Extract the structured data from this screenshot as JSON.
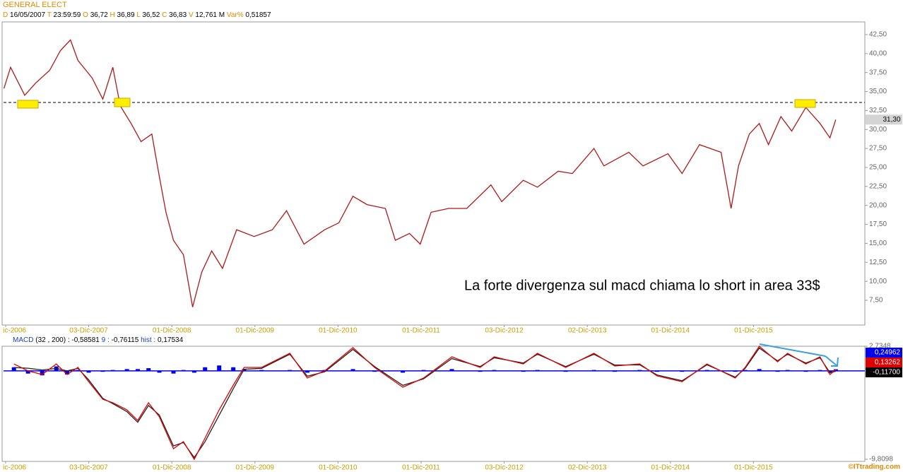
{
  "header": {
    "symbol": "GENERAL ELECT",
    "fields": [
      {
        "key": "D",
        "value": "16/05/2007"
      },
      {
        "key": "T",
        "value": "23:59:59"
      },
      {
        "key": "O",
        "value": "36,72"
      },
      {
        "key": "H",
        "value": "36,89"
      },
      {
        "key": "L",
        "value": "36,52"
      },
      {
        "key": "C",
        "value": "36,83"
      },
      {
        "key": "V",
        "value": "12,761 M"
      },
      {
        "key": "Var%",
        "value": "0,51857"
      }
    ]
  },
  "watermark": "©ITtrading.com",
  "chart_data": [
    {
      "type": "line",
      "annotation": "La forte divergenza sul macd chiama lo short in area 33$",
      "xlim": [
        2006.895,
        2017.26
      ],
      "ylim": [
        4.24,
        43.52
      ],
      "xticks": [
        {
          "value": 2006.92,
          "label": "ic-2006"
        },
        {
          "value": 2007.92,
          "label": "03-Dic-2007"
        },
        {
          "value": 2008.92,
          "label": "01-Dic-2008"
        },
        {
          "value": 2009.92,
          "label": "01-Dic-2009"
        },
        {
          "value": 2010.92,
          "label": "01-Dic-2010"
        },
        {
          "value": 2011.92,
          "label": "01-Dic-2011"
        },
        {
          "value": 2012.92,
          "label": "03-Dic-2012"
        },
        {
          "value": 2013.92,
          "label": "02-Dic-2013"
        },
        {
          "value": 2014.92,
          "label": "01-Dic-2014"
        },
        {
          "value": 2015.92,
          "label": "01-Dic-2015"
        }
      ],
      "yticks": [
        {
          "value": 7.5,
          "label": "7,50"
        },
        {
          "value": 10,
          "label": "10,00"
        },
        {
          "value": 12.5,
          "label": "12,50"
        },
        {
          "value": 15,
          "label": "15,00"
        },
        {
          "value": 17.5,
          "label": "17,50"
        },
        {
          "value": 20,
          "label": "20,00"
        },
        {
          "value": 22.5,
          "label": "22,50"
        },
        {
          "value": 25,
          "label": "25,00"
        },
        {
          "value": 27.5,
          "label": "27,50"
        },
        {
          "value": 30,
          "label": "30,00"
        },
        {
          "value": 32.5,
          "label": "32,50"
        },
        {
          "value": 35,
          "label": "35,00"
        },
        {
          "value": 37.5,
          "label": "37,50"
        },
        {
          "value": 40,
          "label": "40,00"
        },
        {
          "value": 42.5,
          "label": "42,50"
        }
      ],
      "hline": 33.56,
      "last_price": {
        "value": 31.3,
        "label": "31,30"
      },
      "series": [
        {
          "color": "#b01818",
          "x": [
            2006.9,
            2006.98,
            2007.15,
            2007.28,
            2007.45,
            2007.58,
            2007.7,
            2007.79,
            2007.96,
            2008.09,
            2008.21,
            2008.3,
            2008.43,
            2008.55,
            2008.68,
            2008.77,
            2008.85,
            2008.94,
            2009.06,
            2009.17,
            2009.28,
            2009.4,
            2009.53,
            2009.7,
            2009.91,
            2010.13,
            2010.3,
            2010.51,
            2010.76,
            2010.93,
            2011.1,
            2011.27,
            2011.49,
            2011.61,
            2011.78,
            2011.91,
            2012.04,
            2012.25,
            2012.47,
            2012.76,
            2012.89,
            2013.15,
            2013.32,
            2013.57,
            2013.74,
            2014.0,
            2014.12,
            2014.42,
            2014.59,
            2014.89,
            2015.06,
            2015.27,
            2015.53,
            2015.65,
            2015.74,
            2015.87,
            2015.99,
            2016.1,
            2016.25,
            2016.38,
            2016.55,
            2016.72,
            2016.84,
            2016.91
          ],
          "values": [
            35.4,
            38.2,
            34.5,
            36.1,
            37.8,
            40.4,
            41.8,
            39.1,
            36.8,
            34.0,
            38.2,
            33.1,
            30.8,
            28.4,
            29.4,
            23.8,
            19.1,
            15.4,
            13.5,
            6.6,
            11.2,
            14.0,
            11.7,
            16.8,
            15.9,
            16.8,
            19.3,
            14.9,
            16.8,
            17.7,
            21.2,
            20.1,
            19.6,
            15.4,
            16.3,
            14.9,
            19.1,
            19.6,
            19.6,
            22.7,
            20.5,
            23.3,
            22.4,
            24.5,
            24.2,
            27.5,
            25.2,
            27.0,
            25.2,
            26.8,
            24.2,
            28.0,
            27.0,
            19.6,
            25.2,
            29.4,
            30.8,
            28.0,
            31.7,
            29.8,
            32.9,
            30.8,
            28.9,
            31.3
          ]
        }
      ]
    },
    {
      "type": "line",
      "fields": [
        {
          "label": "MACD",
          "value": "(32 , 200) : -0,58581"
        },
        {
          "label": "9 :",
          "value": "-0,76115"
        },
        {
          "label": "hist :",
          "value": "0,17534"
        }
      ],
      "xlim": [
        2006.895,
        2017.26
      ],
      "ylim": [
        -9.8098,
        2.7348
      ],
      "xticks": [
        {
          "value": 2006.92,
          "label": "ic-2006"
        },
        {
          "value": 2007.92,
          "label": "03-Dic-2007"
        },
        {
          "value": 2008.92,
          "label": "01-Dic-2008"
        },
        {
          "value": 2009.92,
          "label": "01-Dic-2009"
        },
        {
          "value": 2010.92,
          "label": "01-Dic-2010"
        },
        {
          "value": 2011.92,
          "label": "01-Dic-2011"
        },
        {
          "value": 2012.92,
          "label": "03-Dic-2012"
        },
        {
          "value": 2013.92,
          "label": "02-Dic-2013"
        },
        {
          "value": 2014.92,
          "label": "01-Dic-2014"
        },
        {
          "value": 2015.92,
          "label": "01-Dic-2015"
        }
      ],
      "yticks": [
        {
          "value": -9.8098,
          "label": "-9,8098"
        },
        {
          "value": 2.7348,
          "label": "2,7348"
        }
      ],
      "last_values": [
        {
          "label": "0,24962",
          "color": "#0000ee"
        },
        {
          "label": "0,13262",
          "color": "#dd0000"
        },
        {
          "label": "-0,11700",
          "color": "#000000"
        }
      ],
      "x": [
        2007.02,
        2007.19,
        2007.36,
        2007.53,
        2007.66,
        2007.79,
        2007.92,
        2008.09,
        2008.21,
        2008.38,
        2008.51,
        2008.64,
        2008.77,
        2008.94,
        2009.06,
        2009.19,
        2009.32,
        2009.49,
        2009.66,
        2009.79,
        2010.0,
        2010.34,
        2010.55,
        2010.76,
        2011.1,
        2011.36,
        2011.7,
        2011.95,
        2012.29,
        2012.63,
        2012.8,
        2013.15,
        2013.32,
        2013.66,
        2014.0,
        2014.25,
        2014.55,
        2014.76,
        2015.06,
        2015.36,
        2015.7,
        2015.82,
        2015.99,
        2016.21,
        2016.33,
        2016.55,
        2016.72,
        2016.84,
        2016.91
      ],
      "series": [
        {
          "color": "#0000ee",
          "bars": true,
          "values": [
            0.4,
            -0.3,
            -0.5,
            0.5,
            -0.4,
            0.1,
            -0.2,
            -0.1,
            0.1,
            0.2,
            0.2,
            0.3,
            -0.2,
            -0.3,
            0.1,
            -0.2,
            0.4,
            0.6,
            0.4,
            0.2,
            0.1,
            0.1,
            -0.2,
            0.1,
            0.2,
            -0.1,
            -0.2,
            0.1,
            0.2,
            -0.1,
            0.1,
            -0.1,
            0.1,
            -0.1,
            0.1,
            -0.1,
            0.1,
            -0.1,
            -0.1,
            0.1,
            -0.1,
            0.1,
            0.2,
            -0.1,
            0.1,
            -0.1,
            0.1,
            -0.2,
            0.18
          ]
        },
        {
          "color": "#222222",
          "values": [
            0.37,
            0.3,
            0.1,
            0.27,
            0,
            0.28,
            -1.0,
            -3.05,
            -3.64,
            -4.52,
            -5.7,
            -3.84,
            -4.9,
            -8.33,
            -7.95,
            -9.61,
            -7.86,
            -4.92,
            -1.98,
            0.18,
            0.28,
            1.85,
            -0.59,
            -0.1,
            2.38,
            0.48,
            -1.61,
            -0.89,
            1.36,
            0.48,
            1.46,
            0.87,
            1.85,
            0.48,
            1.85,
            0.64,
            0.67,
            -0.46,
            -1.1,
            0.67,
            -0.69,
            0.28,
            2.53,
            1.11,
            1.85,
            0.87,
            1.46,
            -0.2,
            -0.05
          ]
        },
        {
          "color": "#dd0000",
          "values": [
            0.77,
            0,
            -0.4,
            0.77,
            -0.4,
            0.38,
            -1.2,
            -3.15,
            -3.54,
            -4.32,
            -5.5,
            -3.54,
            -5.1,
            -8.63,
            -7.85,
            -9.81,
            -7.46,
            -4.32,
            -1.58,
            0.38,
            0.38,
            1.95,
            -0.79,
            0,
            2.58,
            0.38,
            -1.81,
            -0.79,
            1.56,
            0.38,
            1.56,
            0.77,
            1.95,
            0.38,
            1.95,
            0.54,
            0.77,
            -0.56,
            -1.2,
            0.77,
            -0.79,
            0.38,
            2.73,
            1.01,
            1.95,
            0.77,
            1.56,
            -0.4,
            0.13
          ]
        }
      ]
    }
  ]
}
